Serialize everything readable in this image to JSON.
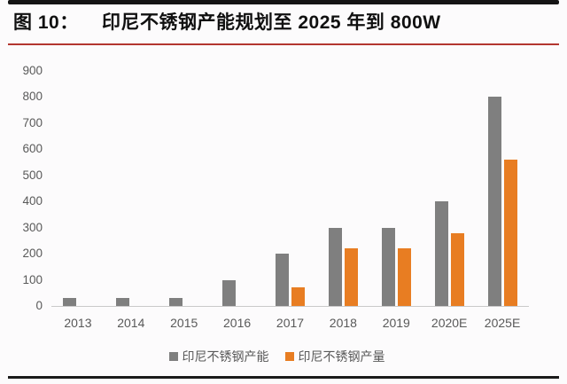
{
  "header": {
    "figure_label": "图 10：",
    "title": "印尼不锈钢产能规划至 2025 年到 800W"
  },
  "chart_data": {
    "type": "bar",
    "categories": [
      "2013",
      "2014",
      "2015",
      "2016",
      "2017",
      "2018",
      "2019",
      "2020E",
      "2025E"
    ],
    "series": [
      {
        "key": "capacity",
        "name": "印尼不锈钢产能",
        "color": "#7f7f7f",
        "values": [
          30,
          30,
          30,
          100,
          200,
          300,
          300,
          400,
          800
        ]
      },
      {
        "key": "production",
        "name": "印尼不锈钢产量",
        "color": "#e87d22",
        "values": [
          0,
          0,
          0,
          0,
          70,
          220,
          220,
          280,
          560
        ]
      }
    ],
    "title": "",
    "xlabel": "",
    "ylabel": "",
    "ylim": [
      0,
      900
    ],
    "yticks": [
      0,
      100,
      200,
      300,
      400,
      500,
      600,
      700,
      800,
      900
    ],
    "grid": false,
    "legend_position": "bottom"
  },
  "colors": {
    "accent_red": "#b3362f",
    "rule_black": "#141414",
    "bar_gray": "#7f7f7f",
    "bar_orange": "#e87d22",
    "axis_text": "#595959",
    "baseline": "#c9c9c9"
  }
}
